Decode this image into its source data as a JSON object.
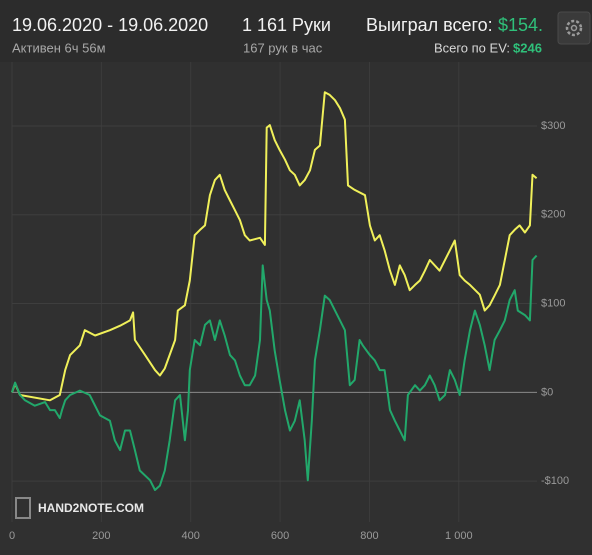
{
  "header": {
    "date_range": "19.06.2020 - 19.06.2020",
    "active": "Активен 6ч 56м",
    "hands": "1 161 Руки",
    "rate": "167 рук в час",
    "won_label": "Выиграл всего:",
    "won_value": "$154.",
    "ev_label": "Всего по EV:",
    "ev_value": "$246"
  },
  "logo": "HAND2NOTE.COM",
  "chart_data": {
    "type": "line",
    "xlim": [
      0,
      1175
    ],
    "ylim": [
      -146,
      372
    ],
    "xticks": [
      0,
      200,
      400,
      600,
      800,
      {
        "value": 1000,
        "label": "1 000"
      }
    ],
    "yticks": [
      {
        "value": -100,
        "label": "-$100"
      },
      {
        "value": 0,
        "label": "$0"
      },
      {
        "value": 100,
        "label": "$100"
      },
      {
        "value": 200,
        "label": "$200"
      },
      {
        "value": 300,
        "label": "$300"
      }
    ],
    "grid": true,
    "series": [
      {
        "color": "#f0f05a",
        "x": [
          0,
          7,
          18,
          85,
          107,
          119,
          130,
          152,
          163,
          186,
          219,
          242,
          264,
          271,
          275,
          298,
          320,
          331,
          342,
          365,
          371,
          387,
          398,
          409,
          421,
          432,
          443,
          454,
          465,
          476,
          488,
          499,
          510,
          521,
          532,
          555,
          566,
          570,
          577,
          588,
          599,
          611,
          622,
          633,
          644,
          655,
          667,
          678,
          689,
          700,
          711,
          723,
          734,
          745,
          752,
          767,
          790,
          801,
          812,
          823,
          834,
          846,
          857,
          868,
          879,
          890,
          902,
          913,
          924,
          935,
          957,
          980,
          991,
          1002,
          1013,
          1025,
          1047,
          1058,
          1069,
          1080,
          1092,
          1114,
          1125,
          1136,
          1148,
          1159,
          1165,
          1174
        ],
        "values": [
          0,
          10,
          -3,
          -9,
          -3,
          25,
          42,
          53,
          70,
          64,
          70,
          75,
          81,
          90,
          59,
          42,
          25,
          19,
          27,
          59,
          92,
          98,
          126,
          177,
          183,
          188,
          222,
          239,
          245,
          228,
          216,
          205,
          194,
          177,
          171,
          174,
          166,
          298,
          301,
          284,
          273,
          262,
          250,
          245,
          233,
          239,
          250,
          273,
          278,
          338,
          335,
          329,
          320,
          307,
          233,
          228,
          222,
          188,
          171,
          177,
          160,
          137,
          121,
          143,
          132,
          115,
          121,
          126,
          137,
          149,
          137,
          160,
          171,
          132,
          126,
          121,
          110,
          92,
          98,
          109,
          121,
          177,
          183,
          188,
          180,
          188,
          245,
          241
        ]
      },
      {
        "color": "#22a86b",
        "x": [
          0,
          7,
          18,
          29,
          51,
          74,
          85,
          96,
          107,
          112,
          119,
          130,
          152,
          174,
          197,
          219,
          230,
          242,
          253,
          264,
          275,
          286,
          309,
          320,
          331,
          342,
          353,
          365,
          376,
          387,
          394,
          398,
          409,
          421,
          432,
          443,
          454,
          465,
          476,
          488,
          499,
          510,
          521,
          532,
          544,
          555,
          561,
          570,
          577,
          588,
          599,
          611,
          622,
          633,
          644,
          655,
          662,
          671,
          678,
          689,
          700,
          711,
          723,
          734,
          745,
          756,
          767,
          778,
          785,
          801,
          812,
          823,
          834,
          846,
          857,
          868,
          879,
          886,
          902,
          913,
          924,
          935,
          946,
          957,
          969,
          980,
          991,
          1002,
          1013,
          1025,
          1036,
          1047,
          1058,
          1069,
          1080,
          1092,
          1103,
          1114,
          1125,
          1132,
          1148,
          1159,
          1165,
          1174
        ],
        "values": [
          0,
          11,
          -3,
          -9,
          -15,
          -11,
          -20,
          -20,
          -29,
          -20,
          -9,
          -3,
          2,
          -3,
          -26,
          -32,
          -54,
          -65,
          -43,
          -43,
          -65,
          -88,
          -99,
          -110,
          -105,
          -88,
          -54,
          -9,
          -3,
          -54,
          -20,
          25,
          59,
          53,
          76,
          81,
          59,
          81,
          64,
          42,
          36,
          19,
          8,
          8,
          19,
          59,
          143,
          104,
          92,
          47,
          14,
          -20,
          -43,
          -32,
          -9,
          -54,
          -99,
          -32,
          36,
          70,
          109,
          104,
          92,
          81,
          70,
          8,
          14,
          59,
          53,
          42,
          36,
          25,
          25,
          -20,
          -32,
          -43,
          -54,
          -3,
          8,
          2,
          8,
          19,
          8,
          -9,
          -3,
          25,
          14,
          -3,
          36,
          70,
          92,
          76,
          53,
          25,
          59,
          70,
          81,
          104,
          115,
          92,
          87,
          81,
          149,
          154
        ]
      }
    ]
  }
}
